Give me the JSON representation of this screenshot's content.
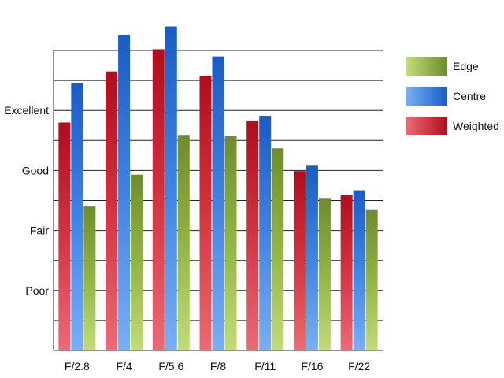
{
  "chart_data": {
    "type": "bar",
    "title": "",
    "xlabel": "",
    "ylabel": "",
    "categories": [
      "F/2.8",
      "F/4",
      "F/5.6",
      "F/8",
      "F/11",
      "F/16",
      "F/22"
    ],
    "y_tick_labels": [
      "Poor",
      "Fair",
      "Good",
      "Excellent"
    ],
    "y_tick_values": [
      1,
      2,
      3,
      4
    ],
    "ylim": [
      0,
      5
    ],
    "grid": true,
    "legend_position": "right",
    "series": [
      {
        "name": "Weighted",
        "values": [
          3.8,
          4.65,
          5.02,
          4.58,
          3.82,
          2.99,
          2.59
        ],
        "color": "#c0182a"
      },
      {
        "name": "Centre",
        "values": [
          4.45,
          5.26,
          5.4,
          4.9,
          3.91,
          3.08,
          2.67
        ],
        "color": "#2a6fd0"
      },
      {
        "name": "Edge",
        "values": [
          2.4,
          2.93,
          3.58,
          3.57,
          3.37,
          2.53,
          2.34
        ],
        "color": "#8fb43c"
      }
    ],
    "legend_entries": [
      "Edge",
      "Centre",
      "Weighted"
    ]
  }
}
